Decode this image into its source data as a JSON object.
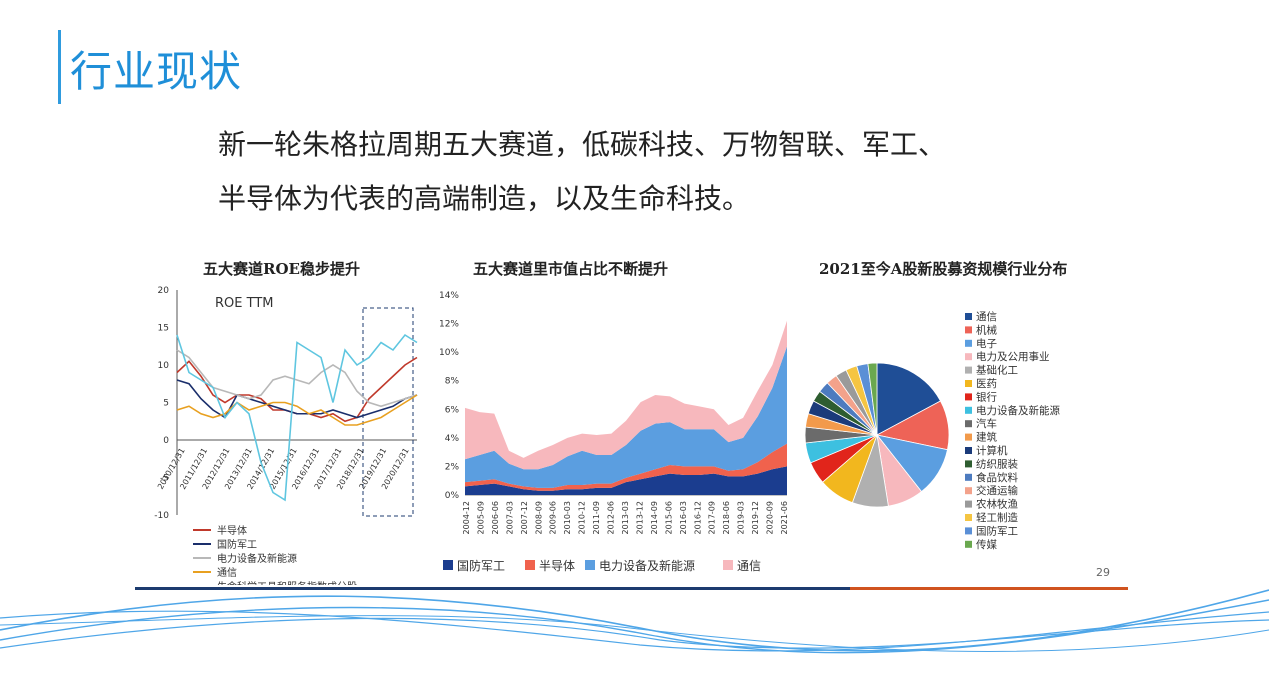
{
  "page": {
    "title": "行业现状",
    "intro_line1": "新一轮朱格拉周期五大赛道，低碳科技、万物智联、军工、",
    "intro_line2": "半导体为代表的高端制造，以及生命科技。",
    "page_number": "29"
  },
  "colors": {
    "accent": "#1f8fd8",
    "navy": "#1c3b6f",
    "orange": "#d0531f"
  },
  "chart_data": [
    {
      "type": "line",
      "title": "五大赛道ROE稳步提升",
      "annotation": "ROE TTM",
      "ylim": [
        -10,
        20
      ],
      "yticks": [
        "20",
        "15",
        "10",
        "5",
        "0",
        "-5",
        "-10"
      ],
      "xticks": [
        "2010/12/31",
        "2011/12/31",
        "2012/12/31",
        "2013/12/31",
        "2014/12/31",
        "2015/12/31",
        "2016/12/31",
        "2017/12/31",
        "2018/12/31",
        "2019/12/31",
        "2020/12/31"
      ],
      "series": [
        {
          "name": "半导体",
          "color": "#c0392b",
          "values": [
            9,
            10.5,
            8.5,
            6,
            5,
            6,
            6,
            5.5,
            4,
            4,
            3.5,
            3.5,
            3,
            3.5,
            2.5,
            3,
            5.5,
            7,
            8.5,
            10,
            11
          ]
        },
        {
          "name": "国防军工",
          "color": "#1a2e6b",
          "values": [
            8,
            7.5,
            5.5,
            4,
            3,
            6,
            5.5,
            5,
            4.5,
            4,
            3.5,
            3.5,
            3.5,
            4,
            3.5,
            3,
            3.5,
            4,
            4.5,
            5.5,
            6
          ]
        },
        {
          "name": "电力设备及新能源",
          "color": "#b8b8b8",
          "values": [
            12,
            11,
            9,
            7,
            6.5,
            6,
            5.5,
            6,
            8,
            8.5,
            8,
            7.5,
            9,
            10,
            9,
            6.5,
            5,
            4.5,
            5,
            5.5,
            6
          ]
        },
        {
          "name": "通信",
          "color": "#e8a020",
          "values": [
            4,
            4.5,
            3.5,
            3,
            3.5,
            5,
            4,
            4.5,
            5,
            5,
            4.5,
            3.5,
            4,
            3,
            2,
            2,
            2.5,
            3,
            4,
            5,
            6
          ]
        },
        {
          "name": "生命科学工具和服务指数成分股",
          "color": "#5fc6e0",
          "values": [
            14,
            9,
            8,
            7,
            3,
            5,
            3.5,
            -3,
            -7,
            -8,
            13,
            12,
            11,
            5,
            12,
            10,
            11,
            13,
            12,
            14,
            13
          ]
        }
      ]
    },
    {
      "type": "area",
      "title": "五大赛道里市值占比不断提升",
      "ylim": [
        0,
        14
      ],
      "yticks": [
        "14%",
        "12%",
        "10%",
        "8%",
        "6%",
        "4%",
        "2%",
        "0%"
      ],
      "xticks": [
        "2004-12",
        "2005-09",
        "2006-06",
        "2007-03",
        "2007-12",
        "2008-09",
        "2009-06",
        "2010-03",
        "2010-12",
        "2011-09",
        "2012-06",
        "2013-03",
        "2013-12",
        "2014-09",
        "2015-06",
        "2016-03",
        "2016-12",
        "2017-09",
        "2018-06",
        "2019-03",
        "2019-12",
        "2020-09",
        "2021-06"
      ],
      "series": [
        {
          "name": "国防军工",
          "color": "#1b3d8f",
          "values": [
            0.6,
            0.7,
            0.8,
            0.6,
            0.4,
            0.3,
            0.3,
            0.4,
            0.4,
            0.5,
            0.5,
            0.9,
            1.1,
            1.3,
            1.5,
            1.4,
            1.4,
            1.5,
            1.3,
            1.3,
            1.5,
            1.8,
            2.0
          ]
        },
        {
          "name": "半导体",
          "color": "#f0624d",
          "values": [
            0.3,
            0.3,
            0.3,
            0.2,
            0.2,
            0.2,
            0.2,
            0.3,
            0.3,
            0.3,
            0.3,
            0.3,
            0.4,
            0.5,
            0.6,
            0.6,
            0.6,
            0.5,
            0.4,
            0.5,
            0.8,
            1.2,
            1.6
          ]
        },
        {
          "name": "电力设备及新能源",
          "color": "#5b9ee0",
          "values": [
            1.6,
            1.8,
            2.0,
            1.4,
            1.2,
            1.3,
            1.6,
            2.0,
            2.4,
            2.0,
            2.0,
            2.3,
            3.0,
            3.2,
            3.0,
            2.6,
            2.6,
            2.6,
            2.0,
            2.2,
            3.2,
            4.5,
            6.8
          ]
        },
        {
          "name": "通信",
          "color": "#f7b8bd",
          "values": [
            3.6,
            3.0,
            2.6,
            0.9,
            0.8,
            1.3,
            1.4,
            1.3,
            1.2,
            1.4,
            1.5,
            1.7,
            2.0,
            2.0,
            1.8,
            1.8,
            1.6,
            1.4,
            1.2,
            1.4,
            1.8,
            1.6,
            1.8
          ]
        }
      ]
    },
    {
      "type": "pie",
      "title": "2021至今A股新股募资规模行业分布",
      "slices": [
        {
          "label": "通信",
          "value": 17,
          "color": "#1f4e96"
        },
        {
          "label": "机械",
          "value": 11,
          "color": "#ee6357"
        },
        {
          "label": "电子",
          "value": 11,
          "color": "#5b9ee0"
        },
        {
          "label": "电力及公用事业",
          "value": 8,
          "color": "#f7b8bd"
        },
        {
          "label": "基础化工",
          "value": 8,
          "color": "#b0b0b0"
        },
        {
          "label": "医药",
          "value": 8,
          "color": "#f2b71e"
        },
        {
          "label": "银行",
          "value": 5,
          "color": "#e1251b"
        },
        {
          "label": "电力设备及新能源",
          "value": 4.5,
          "color": "#3dc0e0"
        },
        {
          "label": "汽车",
          "value": 3.5,
          "color": "#6b6b6b"
        },
        {
          "label": "建筑",
          "value": 3,
          "color": "#f29a4b"
        },
        {
          "label": "计算机",
          "value": 3,
          "color": "#1b3b7a"
        },
        {
          "label": "纺织服装",
          "value": 2.5,
          "color": "#2e5d30"
        },
        {
          "label": "食品饮料",
          "value": 2.5,
          "color": "#4d7bbf"
        },
        {
          "label": "交通运输",
          "value": 2.5,
          "color": "#f3a28b"
        },
        {
          "label": "农林牧渔",
          "value": 2.5,
          "color": "#9a9a9a"
        },
        {
          "label": "轻工制造",
          "value": 2.5,
          "color": "#f5c542"
        },
        {
          "label": "国防军工",
          "value": 2.5,
          "color": "#5a8fd6"
        },
        {
          "label": "传媒",
          "value": 2,
          "color": "#6aa84f"
        }
      ]
    }
  ]
}
